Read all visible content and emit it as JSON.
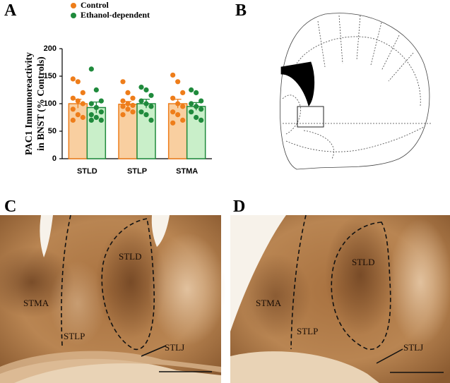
{
  "chart_data": {
    "type": "bar",
    "ylabel": [
      "PAC1 Immunoreactivity",
      "in BNST (% Controls)"
    ],
    "categories": [
      "STLD",
      "STLP",
      "STMA"
    ],
    "series": [
      {
        "name": "Control",
        "color": "#ee7d1a",
        "fill": "#f9cfa0",
        "values": [
          100,
          99,
          100
        ],
        "errors": [
          8,
          5,
          8
        ],
        "points": [
          [
            145,
            140,
            120,
            110,
            105,
            100,
            90,
            80,
            75,
            70
          ],
          [
            140,
            120,
            110,
            105,
            100,
            97,
            95,
            90,
            85,
            80
          ],
          [
            152,
            140,
            120,
            110,
            100,
            95,
            85,
            80,
            70,
            65
          ]
        ]
      },
      {
        "name": "Ethanol-dependent",
        "color": "#1f8a3c",
        "fill": "#c9efc9",
        "values": [
          93,
          100,
          95
        ],
        "errors": [
          10,
          8,
          7
        ],
        "points": [
          [
            163,
            125,
            105,
            100,
            93,
            85,
            80,
            75,
            70,
            70
          ],
          [
            130,
            125,
            115,
            105,
            100,
            95,
            85,
            80,
            70
          ],
          [
            125,
            120,
            105,
            100,
            95,
            90,
            85,
            75,
            70
          ]
        ]
      }
    ],
    "ylim": [
      0,
      200
    ],
    "yticks": [
      0,
      50,
      100,
      150,
      200
    ]
  },
  "figure": {
    "panel_labels": [
      "A",
      "B",
      "C",
      "D"
    ],
    "panel_c": {
      "labels": [
        "STLD",
        "STMA",
        "STLP",
        "STLJ"
      ]
    },
    "panel_d": {
      "labels": [
        "STLD",
        "STMA",
        "STLP",
        "STLJ"
      ]
    }
  }
}
